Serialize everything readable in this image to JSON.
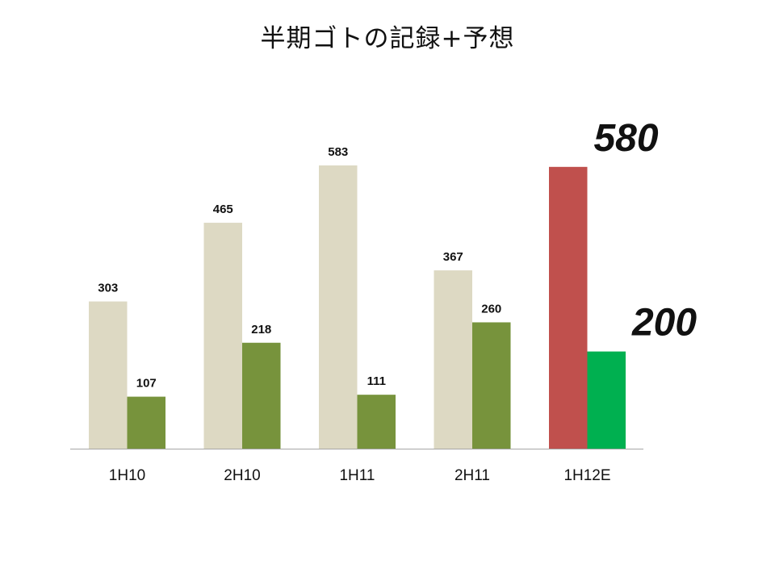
{
  "title": "半期ゴトの記録+予想",
  "chart_data": {
    "type": "bar",
    "title": "半期ゴトの記録+予想",
    "xlabel": "",
    "ylabel": "",
    "categories": [
      "1H10",
      "2H10",
      "1H11",
      "2H11",
      "1H12E"
    ],
    "ylim": [
      0,
      650
    ],
    "grid": false,
    "series": [
      {
        "values": [
          303,
          465,
          583,
          367,
          580
        ],
        "color": "#ddd9c3",
        "highlight": {
          "index": 4,
          "color": "#c0504d"
        },
        "data_labels": [
          "303",
          "465",
          "583",
          "367",
          "580"
        ]
      },
      {
        "values": [
          107,
          218,
          111,
          260,
          200
        ],
        "color": "#77933c",
        "highlight": {
          "index": 4,
          "color": "#00b050"
        },
        "data_labels": [
          "107",
          "218",
          "111",
          "260",
          "200"
        ]
      }
    ],
    "emphasized_labels_index": 4
  }
}
